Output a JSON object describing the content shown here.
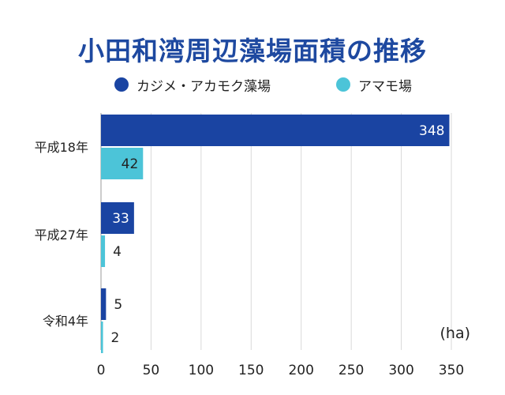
{
  "chart_data": {
    "type": "bar",
    "orientation": "horizontal",
    "title": "小田和湾周辺藻場面積の推移",
    "unit": "(ha)",
    "categories": [
      "平成18年",
      "平成27年",
      "令和4年"
    ],
    "series": [
      {
        "name": "カジメ・アカモク藻場",
        "values": [
          348,
          33,
          5
        ],
        "color": "#1a44a2"
      },
      {
        "name": "アマモ場",
        "values": [
          42,
          4,
          2
        ],
        "color": "#4cc4d8"
      }
    ],
    "xlim": [
      0,
      350
    ],
    "xticks": [
      "0",
      "50",
      "100",
      "150",
      "200",
      "250",
      "300",
      "350"
    ],
    "grid": true,
    "legend_position": "top"
  },
  "colors": {
    "title": "#1e49a0",
    "grid": "#d9d9d9",
    "value_inside": "#ffffff",
    "value_outside": "#222222"
  }
}
